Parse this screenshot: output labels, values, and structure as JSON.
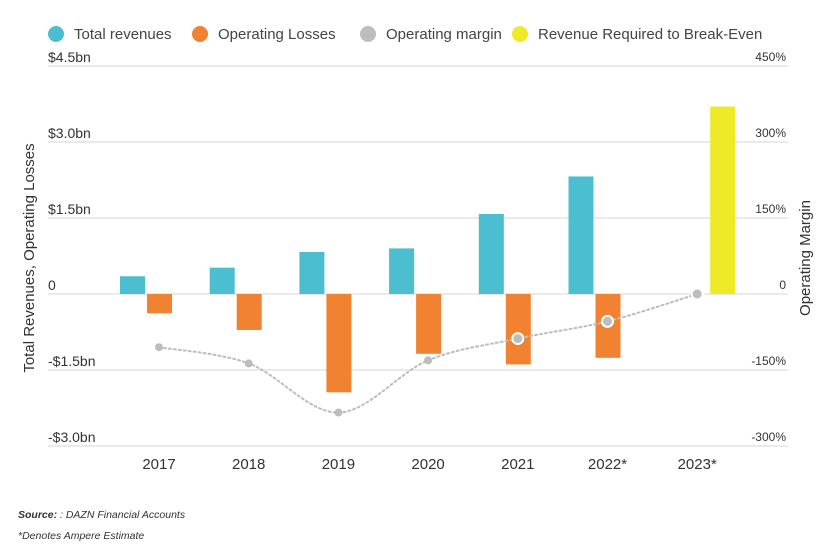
{
  "chart_data": {
    "type": "bar",
    "categories": [
      "2017",
      "2018",
      "2019",
      "2020",
      "2021",
      "2022*",
      "2023*"
    ],
    "series": [
      {
        "name": "Total revenues",
        "kind": "bar",
        "axis": "left",
        "color": "#4bbfd0",
        "values": [
          0.35,
          0.52,
          0.83,
          0.9,
          1.58,
          2.32,
          null
        ]
      },
      {
        "name": "Operating Losses",
        "kind": "bar",
        "axis": "left",
        "color": "#f08232",
        "values": [
          -0.38,
          -0.71,
          -1.94,
          -1.18,
          -1.39,
          -1.26,
          null
        ]
      },
      {
        "name": "Operating margin",
        "kind": "line",
        "axis": "right",
        "color": "#bdbdbd",
        "values": [
          -105,
          -137,
          -234,
          -131,
          -88,
          -54,
          0
        ]
      },
      {
        "name": "Revenue Required to Break-Even",
        "kind": "bar",
        "axis": "left",
        "color": "#eeea27",
        "values": [
          null,
          null,
          null,
          null,
          null,
          null,
          3.7
        ]
      }
    ],
    "y_left": {
      "label": "Total Revenues, Operating Losses",
      "min": -3.0,
      "max": 4.5,
      "ticks": [
        {
          "value": 4.5,
          "label": "$4.5bn"
        },
        {
          "value": 3.0,
          "label": "$3.0bn"
        },
        {
          "value": 1.5,
          "label": "$1.5bn"
        },
        {
          "value": 0,
          "label": "0"
        },
        {
          "value": -1.5,
          "label": "-$1.5bn"
        },
        {
          "value": -3.0,
          "label": "-$3.0bn"
        }
      ]
    },
    "y_right": {
      "label": "Operating Margin",
      "min": -300,
      "max": 450,
      "ticks": [
        {
          "value": 450,
          "label": "450%"
        },
        {
          "value": 300,
          "label": "300%"
        },
        {
          "value": 150,
          "label": "150%"
        },
        {
          "value": 0,
          "label": "0"
        },
        {
          "value": -150,
          "label": "-150%"
        },
        {
          "value": -300,
          "label": "-300%"
        }
      ]
    },
    "highlighted_margin_points": [
      4,
      5,
      6
    ],
    "grid": true,
    "legend_position": "top"
  },
  "footer": {
    "source_label": "Source:",
    "source_text": " : DAZN Financial Accounts",
    "note": "*Denotes Ampere Estimate"
  }
}
